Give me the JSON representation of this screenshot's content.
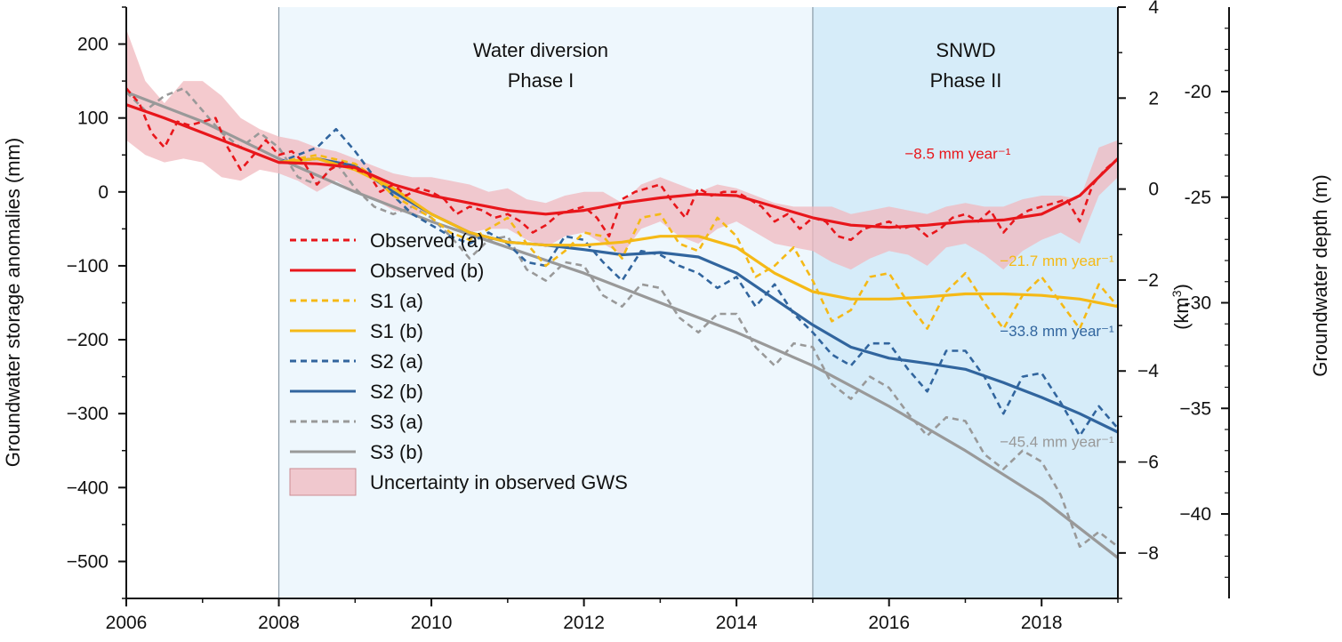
{
  "chart_data": {
    "type": "line",
    "title": "",
    "xlabel": "",
    "ylabel": "Groundwater storage anomalies (mm)",
    "y2label": "(km3)",
    "y2label_base": "(km",
    "y2label_sup": "3",
    "y2label_close": ")",
    "y3label": "Groundwater depth (m)",
    "xlim": [
      2006,
      2019
    ],
    "ylim": [
      -550,
      250
    ],
    "y2lim": [
      -9,
      4
    ],
    "y3lim": [
      -44,
      -16
    ],
    "xticks": [
      2006,
      2008,
      2010,
      2012,
      2014,
      2016,
      2018
    ],
    "xtick_labels": [
      "2006",
      "2008",
      "2010",
      "2012",
      "2014",
      "2016",
      "2018"
    ],
    "yticks": [
      200,
      100,
      0,
      -100,
      -200,
      -300,
      -400,
      -500
    ],
    "ytick_labels": [
      "200",
      "100",
      "0",
      "−100",
      "−200",
      "−300",
      "−400",
      "−500"
    ],
    "y2ticks": [
      4,
      2,
      0,
      -2,
      -4,
      -6,
      -8
    ],
    "y2tick_labels": [
      "4",
      "2",
      "0",
      "−2",
      "−4",
      "−6",
      "−8"
    ],
    "y3ticks": [
      -20,
      -25,
      -30,
      -35,
      -40
    ],
    "y3tick_labels": [
      "-20",
      "-25",
      "-30",
      "−35",
      "−40"
    ],
    "phases": [
      {
        "name": "Water diversion Phase I",
        "line1": "Water diversion",
        "line2": "Phase I",
        "x_start": 2008,
        "x_end": 2015,
        "color": "#eef7fd"
      },
      {
        "name": "SNWD Phase II",
        "line1": "SNWD",
        "line2": "Phase II",
        "x_start": 2015,
        "x_end": 2019,
        "color": "#d6ecf9"
      }
    ],
    "series": [
      {
        "name": "Observed (a)",
        "style": "dashed",
        "color": "#e8161b",
        "x": [
          2006.0,
          2006.17,
          2006.33,
          2006.5,
          2006.67,
          2006.83,
          2007.0,
          2007.17,
          2007.33,
          2007.5,
          2007.67,
          2007.83,
          2008.0,
          2008.17,
          2008.33,
          2008.5,
          2008.67,
          2008.83,
          2009.0,
          2009.17,
          2009.33,
          2009.5,
          2009.67,
          2009.83,
          2010.0,
          2010.17,
          2010.33,
          2010.5,
          2010.67,
          2010.83,
          2011.0,
          2011.17,
          2011.33,
          2011.5,
          2011.67,
          2011.83,
          2012.0,
          2012.17,
          2012.33,
          2012.5,
          2012.67,
          2012.83,
          2013.0,
          2013.17,
          2013.33,
          2013.5,
          2013.67,
          2013.83,
          2014.0,
          2014.17,
          2014.33,
          2014.5,
          2014.67,
          2014.83,
          2015.0,
          2015.17,
          2015.33,
          2015.5,
          2015.67,
          2015.83,
          2016.0,
          2016.17,
          2016.33,
          2016.5,
          2016.67,
          2016.83,
          2017.0,
          2017.17,
          2017.33,
          2017.5,
          2017.67,
          2017.83,
          2018.0,
          2018.17,
          2018.33,
          2018.5,
          2018.67,
          2018.83,
          2019.0
        ],
        "values": [
          140,
          120,
          80,
          60,
          95,
          90,
          95,
          100,
          60,
          30,
          50,
          70,
          50,
          55,
          40,
          10,
          30,
          40,
          30,
          25,
          0,
          10,
          -5,
          5,
          0,
          -10,
          -30,
          -20,
          -25,
          -35,
          -30,
          -40,
          -55,
          -45,
          -30,
          -25,
          -20,
          -35,
          -60,
          -10,
          0,
          5,
          10,
          -15,
          -35,
          5,
          -5,
          0,
          0,
          -10,
          -20,
          -40,
          -30,
          -50,
          -35,
          -40,
          -60,
          -65,
          -50,
          -45,
          -40,
          -50,
          -45,
          -60,
          -50,
          -35,
          -30,
          -40,
          -25,
          -55,
          -35,
          -25,
          -20,
          -15,
          -10,
          -40,
          10,
          30,
          45
        ]
      },
      {
        "name": "Observed (b)",
        "style": "solid",
        "color": "#e8161b",
        "x": [
          2006.0,
          2006.5,
          2007.0,
          2007.5,
          2008.0,
          2008.5,
          2009.0,
          2009.5,
          2010.0,
          2010.5,
          2011.0,
          2011.5,
          2012.0,
          2012.5,
          2013.0,
          2013.5,
          2014.0,
          2014.5,
          2015.0,
          2015.5,
          2016.0,
          2016.5,
          2017.0,
          2017.5,
          2018.0,
          2018.5,
          2019.0
        ],
        "values": [
          118,
          100,
          80,
          60,
          40,
          38,
          33,
          10,
          -5,
          -15,
          -25,
          -30,
          -25,
          -15,
          -8,
          -3,
          -5,
          -20,
          -35,
          -45,
          -48,
          -45,
          -40,
          -38,
          -30,
          -5,
          45
        ]
      },
      {
        "name": "S1 (a)",
        "style": "dashed",
        "color": "#f5b916",
        "x": [
          2008.0,
          2008.5,
          2009.0,
          2009.25,
          2009.5,
          2009.75,
          2010.0,
          2010.25,
          2010.5,
          2010.75,
          2011.0,
          2011.25,
          2011.5,
          2011.75,
          2012.0,
          2012.25,
          2012.5,
          2012.75,
          2013.0,
          2013.25,
          2013.5,
          2013.75,
          2014.0,
          2014.25,
          2014.5,
          2014.75,
          2015.0,
          2015.25,
          2015.5,
          2015.75,
          2016.0,
          2016.25,
          2016.5,
          2016.75,
          2017.0,
          2017.25,
          2017.5,
          2017.75,
          2018.0,
          2018.25,
          2018.5,
          2018.75,
          2019.0
        ],
        "values": [
          40,
          50,
          38,
          20,
          -5,
          -20,
          -35,
          -55,
          -65,
          -50,
          -35,
          -70,
          -100,
          -80,
          -55,
          -60,
          -90,
          -35,
          -30,
          -70,
          -80,
          -35,
          -60,
          -115,
          -100,
          -75,
          -120,
          -175,
          -160,
          -115,
          -110,
          -150,
          -185,
          -135,
          -110,
          -150,
          -185,
          -140,
          -115,
          -150,
          -185,
          -125,
          -155
        ]
      },
      {
        "name": "S1 (b)",
        "style": "solid",
        "color": "#f5b916",
        "x": [
          2008.0,
          2008.5,
          2009.0,
          2009.5,
          2010.0,
          2010.5,
          2011.0,
          2011.5,
          2012.0,
          2012.5,
          2013.0,
          2013.5,
          2014.0,
          2014.5,
          2015.0,
          2015.5,
          2016.0,
          2016.5,
          2017.0,
          2017.5,
          2018.0,
          2018.5,
          2019.0
        ],
        "values": [
          40,
          45,
          30,
          5,
          -30,
          -55,
          -68,
          -72,
          -72,
          -68,
          -60,
          -60,
          -75,
          -110,
          -135,
          -145,
          -145,
          -142,
          -138,
          -138,
          -140,
          -145,
          -155
        ]
      },
      {
        "name": "S2 (a)",
        "style": "dashed",
        "color": "#31659e",
        "x": [
          2008.0,
          2008.5,
          2008.75,
          2009.0,
          2009.25,
          2009.5,
          2009.75,
          2010.0,
          2010.25,
          2010.5,
          2010.75,
          2011.0,
          2011.25,
          2011.5,
          2011.75,
          2012.0,
          2012.25,
          2012.5,
          2012.75,
          2013.0,
          2013.25,
          2013.5,
          2013.75,
          2014.0,
          2014.25,
          2014.5,
          2014.75,
          2015.0,
          2015.25,
          2015.5,
          2015.75,
          2016.0,
          2016.25,
          2016.5,
          2016.75,
          2017.0,
          2017.25,
          2017.5,
          2017.75,
          2018.0,
          2018.25,
          2018.5,
          2018.75,
          2019.0
        ],
        "values": [
          40,
          60,
          85,
          55,
          20,
          -5,
          -30,
          -45,
          -60,
          -70,
          -55,
          -70,
          -95,
          -100,
          -60,
          -65,
          -95,
          -120,
          -80,
          -85,
          -100,
          -110,
          -130,
          -115,
          -155,
          -125,
          -165,
          -190,
          -220,
          -235,
          -205,
          -205,
          -240,
          -270,
          -215,
          -215,
          -250,
          -300,
          -250,
          -245,
          -285,
          -330,
          -290,
          -320
        ]
      },
      {
        "name": "S2 (b)",
        "style": "solid",
        "color": "#31659e",
        "x": [
          2008.0,
          2008.5,
          2009.0,
          2009.5,
          2010.0,
          2010.5,
          2011.0,
          2011.5,
          2012.0,
          2012.5,
          2013.0,
          2013.5,
          2014.0,
          2014.5,
          2015.0,
          2015.5,
          2016.0,
          2016.5,
          2017.0,
          2017.5,
          2018.0,
          2018.5,
          2019.0
        ],
        "values": [
          40,
          45,
          35,
          0,
          -30,
          -55,
          -68,
          -72,
          -78,
          -85,
          -82,
          -88,
          -110,
          -145,
          -180,
          -210,
          -225,
          -232,
          -240,
          -258,
          -278,
          -300,
          -325
        ]
      },
      {
        "name": "S3 (a)",
        "style": "dashed",
        "color": "#999999",
        "x": [
          2006.0,
          2006.25,
          2006.5,
          2006.75,
          2007.0,
          2007.25,
          2007.5,
          2007.75,
          2008.0,
          2008.25,
          2008.5,
          2008.75,
          2009.0,
          2009.25,
          2009.5,
          2009.75,
          2010.0,
          2010.25,
          2010.5,
          2010.75,
          2011.0,
          2011.25,
          2011.5,
          2011.75,
          2012.0,
          2012.25,
          2012.5,
          2012.75,
          2013.0,
          2013.25,
          2013.5,
          2013.75,
          2014.0,
          2014.25,
          2014.5,
          2014.75,
          2015.0,
          2015.25,
          2015.5,
          2015.75,
          2016.0,
          2016.25,
          2016.5,
          2016.75,
          2017.0,
          2017.25,
          2017.5,
          2017.75,
          2018.0,
          2018.25,
          2018.5,
          2018.75,
          2019.0
        ],
        "values": [
          135,
          110,
          130,
          140,
          110,
          80,
          60,
          80,
          60,
          20,
          10,
          40,
          5,
          -20,
          -30,
          -20,
          -35,
          -60,
          -90,
          -65,
          -60,
          -105,
          -120,
          -95,
          -100,
          -140,
          -155,
          -125,
          -130,
          -170,
          -190,
          -165,
          -165,
          -210,
          -235,
          -205,
          -210,
          -260,
          -280,
          -250,
          -265,
          -300,
          -330,
          -305,
          -310,
          -355,
          -375,
          -350,
          -365,
          -410,
          -480,
          -460,
          -480
        ]
      },
      {
        "name": "S3 (b)",
        "style": "solid",
        "color": "#999999",
        "x": [
          2006.0,
          2007.0,
          2008.0,
          2009.0,
          2010.0,
          2011.0,
          2012.0,
          2013.0,
          2014.0,
          2015.0,
          2016.0,
          2017.0,
          2018.0,
          2019.0
        ],
        "values": [
          135,
          95,
          45,
          0,
          -40,
          -75,
          -110,
          -150,
          -190,
          -235,
          -290,
          -350,
          -415,
          -495
        ]
      }
    ],
    "uncertainty_band": {
      "name": "Uncertainty in observed GWS",
      "color": "#f0b8be",
      "x": [
        2006.0,
        2006.25,
        2006.5,
        2006.75,
        2007.0,
        2007.25,
        2007.5,
        2007.75,
        2008.0,
        2008.25,
        2008.5,
        2008.75,
        2009.0,
        2009.25,
        2009.5,
        2009.75,
        2010.0,
        2010.25,
        2010.5,
        2010.75,
        2011.0,
        2011.25,
        2011.5,
        2011.75,
        2012.0,
        2012.25,
        2012.5,
        2012.75,
        2013.0,
        2013.25,
        2013.5,
        2013.75,
        2014.0,
        2014.25,
        2014.5,
        2014.75,
        2015.0,
        2015.25,
        2015.5,
        2015.75,
        2016.0,
        2016.25,
        2016.5,
        2016.75,
        2017.0,
        2017.25,
        2017.5,
        2017.75,
        2018.0,
        2018.25,
        2018.5,
        2018.75,
        2019.0
      ],
      "upper": [
        220,
        150,
        120,
        150,
        150,
        130,
        100,
        85,
        75,
        70,
        60,
        55,
        45,
        35,
        25,
        20,
        20,
        15,
        10,
        0,
        5,
        -10,
        -15,
        -5,
        0,
        0,
        -15,
        10,
        20,
        10,
        0,
        10,
        5,
        -5,
        -15,
        -20,
        -20,
        -20,
        -30,
        -25,
        -20,
        -25,
        -30,
        -20,
        -15,
        -20,
        -20,
        -10,
        -5,
        -5,
        -10,
        60,
        70
      ],
      "lower": [
        70,
        50,
        40,
        45,
        40,
        20,
        15,
        30,
        25,
        15,
        0,
        15,
        0,
        -10,
        -25,
        -30,
        -30,
        -45,
        -55,
        -50,
        -50,
        -65,
        -75,
        -60,
        -55,
        -70,
        -85,
        -50,
        -40,
        -60,
        -70,
        -50,
        -40,
        -55,
        -70,
        -75,
        -80,
        -95,
        -105,
        -90,
        -80,
        -85,
        -100,
        -75,
        -70,
        -85,
        -105,
        -80,
        -65,
        -55,
        -70,
        -5,
        20
      ]
    },
    "annotations": [
      {
        "text": "−8.5 mm year⁻¹",
        "x": 2016.9,
        "y": 45,
        "color": "#e8161b"
      },
      {
        "text": "−21.7 mm year⁻¹",
        "x": 2018.95,
        "y": -100,
        "color": "#f5b916"
      },
      {
        "text": "−33.8 mm year⁻¹",
        "x": 2018.95,
        "y": -195,
        "color": "#31659e"
      },
      {
        "text": "−45.4 mm year⁻¹",
        "x": 2018.95,
        "y": -345,
        "color": "#999999"
      }
    ],
    "legend": {
      "placement": "center-left",
      "entries": [
        {
          "label": "Observed (a)",
          "style": "dashed",
          "color": "#e8161b"
        },
        {
          "label": "Observed (b)",
          "style": "solid",
          "color": "#e8161b"
        },
        {
          "label": "S1 (a)",
          "style": "dashed",
          "color": "#f5b916"
        },
        {
          "label": "S1 (b)",
          "style": "solid",
          "color": "#f5b916"
        },
        {
          "label": "S2 (a)",
          "style": "dashed",
          "color": "#31659e"
        },
        {
          "label": "S2 (b)",
          "style": "solid",
          "color": "#31659e"
        },
        {
          "label": "S3 (a)",
          "style": "dashed",
          "color": "#999999"
        },
        {
          "label": "S3 (b)",
          "style": "solid",
          "color": "#999999"
        },
        {
          "label": "Uncertainty in observed GWS",
          "style": "band",
          "color": "#f0b8be"
        }
      ]
    }
  }
}
